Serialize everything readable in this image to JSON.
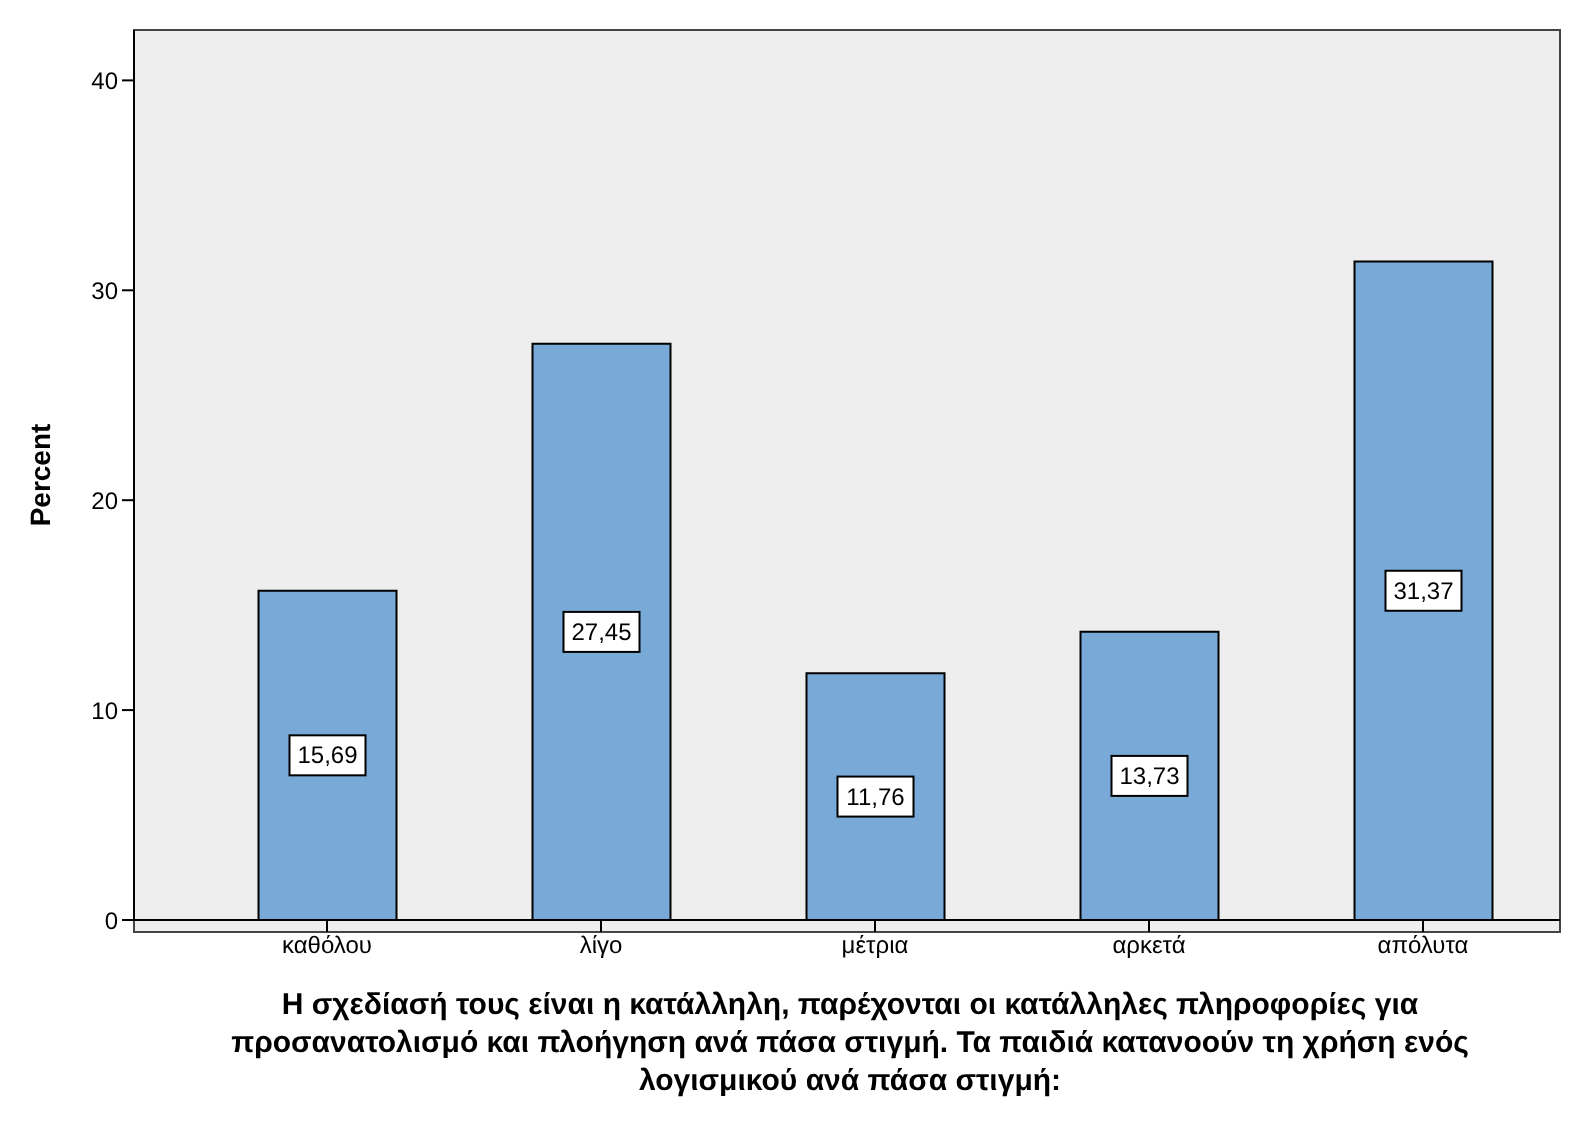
{
  "chart_data": {
    "type": "bar",
    "xlabel": "Η σχεδίασή τους είναι η κατάλληλη, παρέχονται οι κατάλληλες πληροφορίες για προσανατολισμό και πλοήγηση ανά πάσα στιγμή. Τα παιδιά κατανοούν τη χρήση ενός λογισμικού ανά πάσα στιγμή:",
    "ylabel": "Percent",
    "categories": [
      "καθόλου",
      "λίγο",
      "μέτρια",
      "αρκετά",
      "απόλυτα"
    ],
    "values": [
      15.69,
      27.45,
      11.76,
      13.73,
      31.37
    ],
    "value_labels": [
      "15,69",
      "27,45",
      "11,76",
      "13,73",
      "31,37"
    ],
    "color": "#79a9d7",
    "ylim": [
      0,
      42.4
    ],
    "yticks": [
      0,
      10,
      20,
      30,
      40
    ]
  }
}
